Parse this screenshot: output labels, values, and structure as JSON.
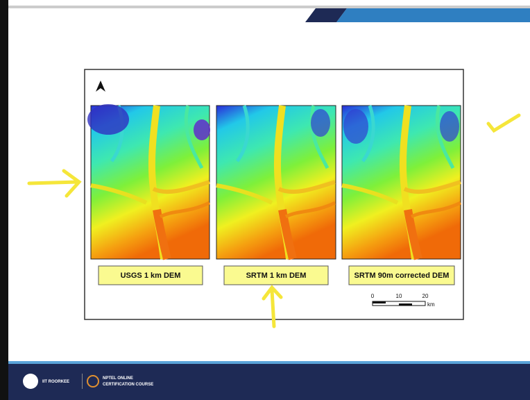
{
  "slide": {
    "panels": [
      {
        "label": "USGS 1 km DEM"
      },
      {
        "label": "SRTM 1 km DEM"
      },
      {
        "label": "SRTM 90m corrected DEM"
      }
    ],
    "scale_bar": {
      "ticks": [
        "0",
        "10",
        "20"
      ],
      "unit": "km"
    },
    "footer": {
      "institute": "IIT ROORKEE",
      "course_line1": "NPTEL ONLINE",
      "course_line2": "CERTIFICATION COURSE"
    }
  }
}
